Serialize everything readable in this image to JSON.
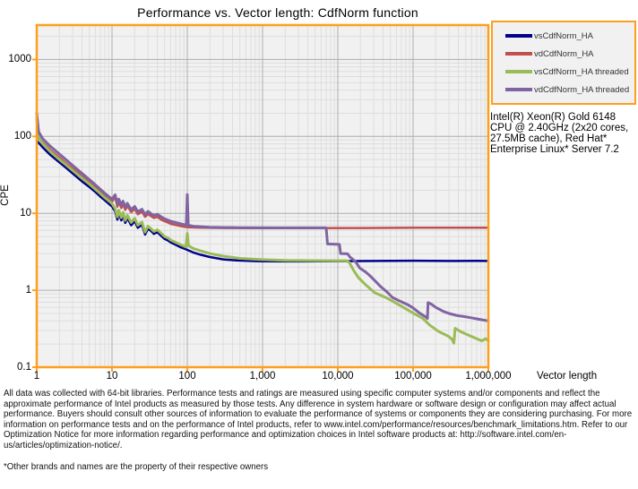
{
  "title": "Performance vs. Vector length: CdfNorm function",
  "y_axis": {
    "label": "CPE",
    "tick_labels": [
      "1000",
      "100",
      "10",
      "1",
      "0.1"
    ],
    "tick_values": [
      1000,
      100,
      10,
      1,
      0.1
    ]
  },
  "x_axis": {
    "label": "Vector length",
    "tick_labels": [
      "1",
      "10",
      "100",
      "1,000",
      "10,000",
      "100,000",
      "1,000,000"
    ],
    "tick_values": [
      1,
      10,
      100,
      1000,
      10000,
      100000,
      1000000
    ]
  },
  "info_box": "Intel(R) Xeon(R) Gold 6148 CPU @ 2.40GHz (2x20 cores, 27.5MB cache), Red Hat* Enterprise Linux* Server 7.2",
  "disclaimer": "All data was collected with 64-bit libraries. Performance tests and ratings are measured using specific computer systems and/or components and reflect the approximate performance of Intel products as measured by those tests. Any difference in system hardware or software design or configuration may affect actual performance. Buyers should consult other sources of information to evaluate the performance of systems or components they are considering purchasing. For more information on performance tests and on the performance of Intel products, refer to www.intel.com/performance/resources/benchmark_limitations.htm.  Refer to our Optimization Notice for more information regarding performance and optimization choices in Intel software products at: http://software.intel.com/en-us/articles/optimization-notice/.",
  "footnote": "*Other brands and names are the property of their respective owners",
  "colors": {
    "axis_orange": "#fca01e",
    "plot_bg": "#f1f1f1",
    "grid_minor": "#dedede",
    "grid_major": "#aeaeae",
    "navy": "#00008b",
    "red": "#c0504d",
    "green": "#9bbb59",
    "purple": "#8064a2"
  },
  "chart_data": {
    "type": "line",
    "xscale": "log",
    "yscale": "log",
    "xlim": [
      1,
      1000000
    ],
    "ylim": [
      0.1,
      2800
    ],
    "xlabel": "Vector length",
    "ylabel": "CPE",
    "grid": true,
    "legend_position": "top-right",
    "series": [
      {
        "name": "vsCdfNorm_HA",
        "color": "#00008b",
        "width": 2.5,
        "points": [
          [
            1,
            88
          ],
          [
            1.2,
            72
          ],
          [
            1.5,
            58
          ],
          [
            2,
            46
          ],
          [
            2.5,
            38.5
          ],
          [
            3,
            33
          ],
          [
            4,
            26
          ],
          [
            5,
            22
          ],
          [
            6,
            19
          ],
          [
            7,
            16.5
          ],
          [
            8,
            14.8
          ],
          [
            9,
            13.4
          ],
          [
            10,
            12.3
          ],
          [
            11,
            10.6
          ],
          [
            11.8,
            8.3
          ],
          [
            12.3,
            10.1
          ],
          [
            13.3,
            8.1
          ],
          [
            14,
            9.5
          ],
          [
            15,
            7.5
          ],
          [
            16,
            8.7
          ],
          [
            18,
            7.0
          ],
          [
            20,
            7.9
          ],
          [
            22,
            6.5
          ],
          [
            25,
            7.1
          ],
          [
            27.5,
            5.3
          ],
          [
            30,
            6.3
          ],
          [
            33,
            5.9
          ],
          [
            36,
            5.4
          ],
          [
            40,
            5.7
          ],
          [
            45,
            5.1
          ],
          [
            50,
            4.65
          ],
          [
            55,
            4.45
          ],
          [
            60,
            4.2
          ],
          [
            70,
            3.9
          ],
          [
            80,
            3.65
          ],
          [
            90,
            3.5
          ],
          [
            100,
            3.35
          ],
          [
            120,
            3.1
          ],
          [
            150,
            2.9
          ],
          [
            200,
            2.7
          ],
          [
            300,
            2.52
          ],
          [
            450,
            2.44
          ],
          [
            700,
            2.4
          ],
          [
            1000,
            2.38
          ],
          [
            3000,
            2.37
          ],
          [
            10000,
            2.39
          ],
          [
            30000,
            2.4
          ],
          [
            100000,
            2.42
          ],
          [
            300000,
            2.4
          ],
          [
            700000,
            2.41
          ],
          [
            1000000,
            2.4
          ]
        ]
      },
      {
        "name": "vdCdfNorm_HA",
        "color": "#c0504d",
        "width": 2.5,
        "points": [
          [
            1,
            100
          ],
          [
            1.2,
            83
          ],
          [
            1.5,
            67
          ],
          [
            2,
            53
          ],
          [
            2.5,
            44
          ],
          [
            3,
            38
          ],
          [
            4,
            30
          ],
          [
            5,
            25
          ],
          [
            6,
            21.5
          ],
          [
            7,
            19
          ],
          [
            8,
            17
          ],
          [
            9,
            15.4
          ],
          [
            10,
            14.2
          ],
          [
            11,
            16.2
          ],
          [
            11.8,
            12.2
          ],
          [
            12.3,
            14.2
          ],
          [
            13.3,
            11.7
          ],
          [
            14,
            13.3
          ],
          [
            15,
            11.1
          ],
          [
            16,
            12.5
          ],
          [
            18,
            10.4
          ],
          [
            20,
            11.4
          ],
          [
            22,
            9.7
          ],
          [
            25,
            10.5
          ],
          [
            27.5,
            9.0
          ],
          [
            30,
            9.8
          ],
          [
            33,
            9.2
          ],
          [
            36,
            8.7
          ],
          [
            40,
            9.0
          ],
          [
            45,
            8.3
          ],
          [
            50,
            7.9
          ],
          [
            55,
            7.6
          ],
          [
            60,
            7.3
          ],
          [
            70,
            7.05
          ],
          [
            80,
            6.85
          ],
          [
            90,
            6.7
          ],
          [
            100,
            6.6
          ],
          [
            150,
            6.5
          ],
          [
            300,
            6.45
          ],
          [
            1000,
            6.42
          ],
          [
            5000,
            6.42
          ],
          [
            20000,
            6.45
          ],
          [
            100000,
            6.5
          ],
          [
            300000,
            6.5
          ],
          [
            600000,
            6.5
          ],
          [
            1000000,
            6.5
          ]
        ]
      },
      {
        "name": "vsCdfNorm_HA threaded",
        "color": "#9bbb59",
        "width": 3,
        "points": [
          [
            1,
            170
          ],
          [
            1.06,
            98
          ],
          [
            1.2,
            80
          ],
          [
            1.5,
            64
          ],
          [
            2,
            50
          ],
          [
            2.5,
            42
          ],
          [
            3,
            36
          ],
          [
            4,
            28.5
          ],
          [
            5,
            24
          ],
          [
            6,
            20.5
          ],
          [
            7,
            18
          ],
          [
            8,
            16
          ],
          [
            9,
            14.6
          ],
          [
            10,
            13.4
          ],
          [
            11,
            11.5
          ],
          [
            11.8,
            9.0
          ],
          [
            12.3,
            11.0
          ],
          [
            13.3,
            8.8
          ],
          [
            14,
            10.3
          ],
          [
            15,
            8.1
          ],
          [
            16,
            9.4
          ],
          [
            18,
            7.6
          ],
          [
            20,
            8.6
          ],
          [
            22,
            7.0
          ],
          [
            25,
            7.7
          ],
          [
            27.5,
            5.7
          ],
          [
            30,
            6.8
          ],
          [
            33,
            6.3
          ],
          [
            36,
            5.8
          ],
          [
            40,
            6.1
          ],
          [
            45,
            5.5
          ],
          [
            50,
            5.0
          ],
          [
            55,
            4.8
          ],
          [
            60,
            4.5
          ],
          [
            70,
            4.2
          ],
          [
            80,
            3.95
          ],
          [
            90,
            3.75
          ],
          [
            96,
            3.65
          ],
          [
            100,
            5.5
          ],
          [
            104,
            3.8
          ],
          [
            120,
            3.5
          ],
          [
            150,
            3.25
          ],
          [
            200,
            3.0
          ],
          [
            300,
            2.78
          ],
          [
            500,
            2.6
          ],
          [
            1000,
            2.5
          ],
          [
            2000,
            2.45
          ],
          [
            5000,
            2.43
          ],
          [
            9000,
            2.42
          ],
          [
            13000,
            2.42
          ],
          [
            14200,
            2.3
          ],
          [
            16300,
            1.8
          ],
          [
            18800,
            1.46
          ],
          [
            23400,
            1.18
          ],
          [
            30800,
            0.93
          ],
          [
            45300,
            0.79
          ],
          [
            64500,
            0.65
          ],
          [
            92000,
            0.53
          ],
          [
            135000,
            0.43
          ],
          [
            168000,
            0.35
          ],
          [
            220000,
            0.29
          ],
          [
            290000,
            0.255
          ],
          [
            330000,
            0.23
          ],
          [
            348000,
            0.205
          ],
          [
            362000,
            0.32
          ],
          [
            430000,
            0.29
          ],
          [
            500000,
            0.27
          ],
          [
            660000,
            0.24
          ],
          [
            820000,
            0.22
          ],
          [
            920000,
            0.235
          ],
          [
            1000000,
            0.22
          ]
        ]
      },
      {
        "name": "vdCdfNorm_HA threaded",
        "color": "#8064a2",
        "width": 3,
        "points": [
          [
            1,
            200
          ],
          [
            1.06,
            115
          ],
          [
            1.2,
            93
          ],
          [
            1.5,
            75
          ],
          [
            2,
            59
          ],
          [
            2.5,
            49
          ],
          [
            3,
            42
          ],
          [
            4,
            33
          ],
          [
            5,
            27.5
          ],
          [
            6,
            23.5
          ],
          [
            7,
            20.5
          ],
          [
            8,
            18.3
          ],
          [
            9,
            16.6
          ],
          [
            10,
            15.3
          ],
          [
            11,
            17.4
          ],
          [
            11.8,
            13.3
          ],
          [
            12.3,
            15.3
          ],
          [
            13.3,
            12.8
          ],
          [
            14,
            14.4
          ],
          [
            15,
            12.0
          ],
          [
            16,
            13.5
          ],
          [
            18,
            11.2
          ],
          [
            20,
            12.3
          ],
          [
            22,
            10.5
          ],
          [
            25,
            11.3
          ],
          [
            27.5,
            9.7
          ],
          [
            30,
            10.6
          ],
          [
            33,
            9.9
          ],
          [
            36,
            9.4
          ],
          [
            40,
            9.7
          ],
          [
            45,
            9.0
          ],
          [
            50,
            8.5
          ],
          [
            55,
            8.2
          ],
          [
            60,
            7.9
          ],
          [
            70,
            7.6
          ],
          [
            80,
            7.35
          ],
          [
            90,
            7.15
          ],
          [
            97,
            7.05
          ],
          [
            100,
            17.5
          ],
          [
            103,
            7.0
          ],
          [
            120,
            6.8
          ],
          [
            200,
            6.6
          ],
          [
            500,
            6.5
          ],
          [
            1500,
            6.48
          ],
          [
            4000,
            6.47
          ],
          [
            7000,
            6.47
          ],
          [
            7300,
            4.0
          ],
          [
            10500,
            3.95
          ],
          [
            10900,
            3.0
          ],
          [
            13500,
            2.98
          ],
          [
            14500,
            2.7
          ],
          [
            16000,
            2.5
          ],
          [
            17500,
            2.3
          ],
          [
            19500,
            1.95
          ],
          [
            23000,
            1.75
          ],
          [
            26000,
            1.58
          ],
          [
            30000,
            1.38
          ],
          [
            37000,
            1.12
          ],
          [
            45000,
            0.95
          ],
          [
            53000,
            0.81
          ],
          [
            65000,
            0.73
          ],
          [
            85000,
            0.65
          ],
          [
            100000,
            0.59
          ],
          [
            120000,
            0.51
          ],
          [
            147000,
            0.45
          ],
          [
            155000,
            0.43
          ],
          [
            158000,
            0.69
          ],
          [
            175000,
            0.66
          ],
          [
            200000,
            0.6
          ],
          [
            254000,
            0.53
          ],
          [
            300000,
            0.5
          ],
          [
            383000,
            0.47
          ],
          [
            480000,
            0.455
          ],
          [
            580000,
            0.44
          ],
          [
            750000,
            0.42
          ],
          [
            1000000,
            0.4
          ]
        ]
      }
    ]
  }
}
